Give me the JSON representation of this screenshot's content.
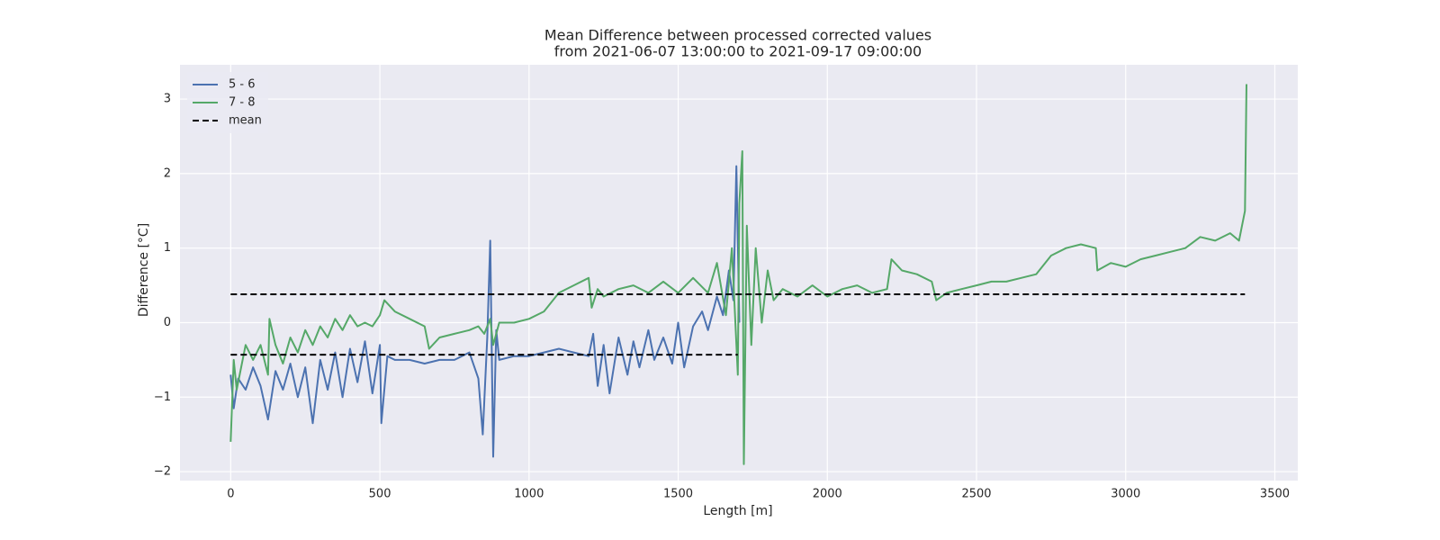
{
  "chart_data": {
    "type": "line",
    "title": "Mean Difference between processed corrected values",
    "subtitle": "from 2021-06-07 13:00:00 to 2021-09-17 09:00:00",
    "x_label": "Length [m]",
    "y_label": "Difference [°C]",
    "xlim": [
      -170,
      3577
    ],
    "ylim": [
      -2.12,
      3.46
    ],
    "xticks": [
      0,
      500,
      1000,
      1500,
      2000,
      2500,
      3000,
      3500
    ],
    "yticks": [
      {
        "value": -2,
        "label": "−2"
      },
      {
        "value": -1,
        "label": "−1"
      },
      0,
      1,
      2,
      3
    ],
    "grid": true,
    "legend": "upper-left",
    "background": "#eaeaf2",
    "series": [
      {
        "name": "5 - 6",
        "color": "#4c72b0",
        "linestyle": "solid",
        "x": [
          0,
          10,
          25,
          50,
          75,
          100,
          125,
          150,
          175,
          200,
          225,
          250,
          275,
          300,
          325,
          350,
          375,
          400,
          425,
          450,
          475,
          500,
          505,
          525,
          550,
          600,
          650,
          700,
          750,
          800,
          830,
          845,
          860,
          870,
          880,
          890,
          900,
          950,
          1000,
          1050,
          1100,
          1150,
          1200,
          1215,
          1230,
          1250,
          1270,
          1300,
          1330,
          1350,
          1370,
          1400,
          1420,
          1450,
          1480,
          1500,
          1520,
          1550,
          1580,
          1600,
          1630,
          1650,
          1670,
          1685,
          1695,
          1705
        ],
        "values": [
          -0.7,
          -1.15,
          -0.75,
          -0.9,
          -0.6,
          -0.85,
          -1.3,
          -0.65,
          -0.9,
          -0.55,
          -1.0,
          -0.6,
          -1.35,
          -0.5,
          -0.9,
          -0.4,
          -1.0,
          -0.35,
          -0.8,
          -0.25,
          -0.95,
          -0.3,
          -1.35,
          -0.45,
          -0.5,
          -0.5,
          -0.55,
          -0.5,
          -0.5,
          -0.4,
          -0.75,
          -1.5,
          -0.2,
          1.1,
          -1.8,
          -0.1,
          -0.5,
          -0.45,
          -0.45,
          -0.4,
          -0.35,
          -0.4,
          -0.45,
          -0.15,
          -0.85,
          -0.3,
          -0.95,
          -0.2,
          -0.7,
          -0.25,
          -0.6,
          -0.1,
          -0.5,
          -0.2,
          -0.55,
          0.0,
          -0.6,
          -0.05,
          0.15,
          -0.1,
          0.35,
          0.1,
          0.7,
          0.3,
          2.1,
          0.0
        ]
      },
      {
        "name": "7 - 8",
        "color": "#55a868",
        "linestyle": "solid",
        "x": [
          0,
          10,
          20,
          50,
          75,
          100,
          125,
          130,
          150,
          175,
          200,
          225,
          250,
          275,
          300,
          325,
          350,
          375,
          400,
          425,
          450,
          475,
          500,
          515,
          550,
          600,
          650,
          665,
          700,
          750,
          800,
          830,
          850,
          870,
          880,
          900,
          950,
          1000,
          1050,
          1100,
          1150,
          1200,
          1210,
          1230,
          1250,
          1300,
          1350,
          1400,
          1450,
          1500,
          1550,
          1600,
          1630,
          1660,
          1680,
          1700,
          1705,
          1715,
          1720,
          1730,
          1745,
          1760,
          1780,
          1800,
          1820,
          1850,
          1900,
          1950,
          2000,
          2050,
          2100,
          2150,
          2200,
          2215,
          2250,
          2300,
          2350,
          2365,
          2400,
          2450,
          2500,
          2550,
          2600,
          2650,
          2700,
          2750,
          2800,
          2850,
          2900,
          2905,
          2950,
          3000,
          3050,
          3100,
          3150,
          3200,
          3250,
          3300,
          3350,
          3380,
          3400,
          3405
        ],
        "values": [
          -1.6,
          -0.5,
          -0.9,
          -0.3,
          -0.5,
          -0.3,
          -0.7,
          0.05,
          -0.3,
          -0.55,
          -0.2,
          -0.4,
          -0.1,
          -0.3,
          -0.05,
          -0.2,
          0.05,
          -0.1,
          0.1,
          -0.05,
          0.0,
          -0.05,
          0.1,
          0.3,
          0.15,
          0.05,
          -0.05,
          -0.35,
          -0.2,
          -0.15,
          -0.1,
          -0.05,
          -0.15,
          0.05,
          -0.3,
          0.0,
          0.0,
          0.05,
          0.15,
          0.4,
          0.5,
          0.6,
          0.2,
          0.45,
          0.35,
          0.45,
          0.5,
          0.4,
          0.55,
          0.4,
          0.6,
          0.4,
          0.8,
          0.1,
          1.0,
          -0.7,
          1.6,
          2.3,
          -1.9,
          1.3,
          -0.3,
          1.0,
          0.0,
          0.7,
          0.3,
          0.45,
          0.35,
          0.5,
          0.35,
          0.45,
          0.5,
          0.4,
          0.45,
          0.85,
          0.7,
          0.65,
          0.55,
          0.3,
          0.4,
          0.45,
          0.5,
          0.55,
          0.55,
          0.6,
          0.65,
          0.9,
          1.0,
          1.05,
          1.0,
          0.7,
          0.8,
          0.75,
          0.85,
          0.9,
          0.95,
          1.0,
          1.15,
          1.1,
          1.2,
          1.1,
          1.5,
          3.2
        ]
      },
      {
        "name": "mean",
        "color": "#000000",
        "linestyle": "dashed",
        "x": [
          0,
          1700,
          1700,
          0,
          3400
        ],
        "values": [
          -0.43,
          -0.43,
          null,
          0.38,
          0.38
        ]
      }
    ]
  }
}
